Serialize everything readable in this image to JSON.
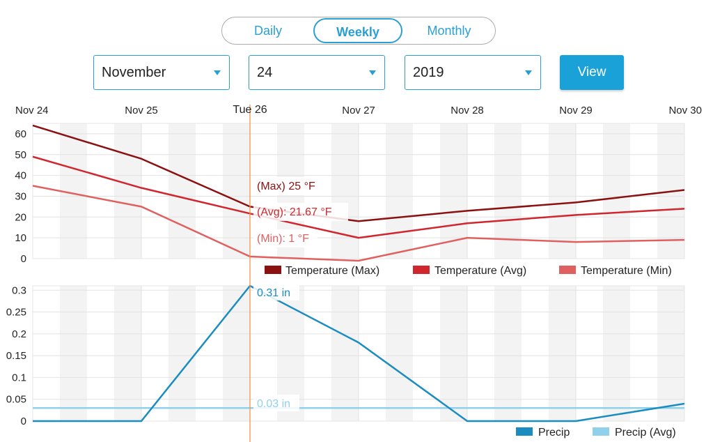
{
  "period_toggle": {
    "daily": "Daily",
    "weekly": "Weekly",
    "monthly": "Monthly",
    "selected": "Weekly"
  },
  "controls": {
    "month": "November",
    "day": "24",
    "year": "2019",
    "view_label": "View"
  },
  "colors": {
    "temp_max": "#8b1010",
    "temp_avg": "#d0262e",
    "temp_min": "#e06060",
    "precip": "#1a8cc0",
    "precip_avg": "#8fd1ea",
    "cursor": "#f4924a",
    "accent": "#2a9fd6"
  },
  "crosshair_label": "Tue 26",
  "chart_data": [
    {
      "type": "line",
      "x": [
        "Nov 24",
        "Nov 25",
        "Nov 26",
        "Nov 27",
        "Nov 28",
        "Nov 29",
        "Nov 30"
      ],
      "x_tick_labels": [
        "Nov 24",
        "Nov 25",
        "",
        "Nov 27",
        "Nov 28",
        "Nov 29",
        "Nov 30"
      ],
      "ylim": [
        0,
        65
      ],
      "y_ticks": [
        "0",
        "10",
        "20",
        "30",
        "40",
        "50",
        "60"
      ],
      "series": [
        {
          "name": "Temperature (Max)",
          "values": [
            64,
            48,
            25,
            18,
            23,
            27,
            33
          ]
        },
        {
          "name": "Temperature (Avg)",
          "values": [
            49,
            34,
            21.67,
            10,
            17,
            21,
            24
          ]
        },
        {
          "name": "Temperature (Min)",
          "values": [
            35,
            25,
            1,
            -1,
            10,
            8,
            9
          ]
        }
      ],
      "tooltips": [
        "(Max) 25 °F",
        "(Avg): 21.67 °F",
        "(Min): 1 °F"
      ],
      "legend_position": "bottom-right",
      "grid": true
    },
    {
      "type": "line",
      "x": [
        "Nov 24",
        "Nov 25",
        "Nov 26",
        "Nov 27",
        "Nov 28",
        "Nov 29",
        "Nov 30"
      ],
      "ylim": [
        0,
        0.31
      ],
      "y_ticks": [
        "0",
        "0.05",
        "0.1",
        "0.15",
        "0.2",
        "0.25",
        "0.3"
      ],
      "series": [
        {
          "name": "Precip",
          "values": [
            0,
            0,
            0.31,
            0.18,
            0,
            0,
            0.04
          ]
        },
        {
          "name": "Precip (Avg)",
          "values": [
            0.03,
            0.03,
            0.03,
            0.03,
            0.03,
            0.03,
            0.03
          ]
        }
      ],
      "tooltips": [
        "0.31 in",
        "0.03 in"
      ],
      "legend_position": "bottom-right",
      "grid": true
    }
  ]
}
